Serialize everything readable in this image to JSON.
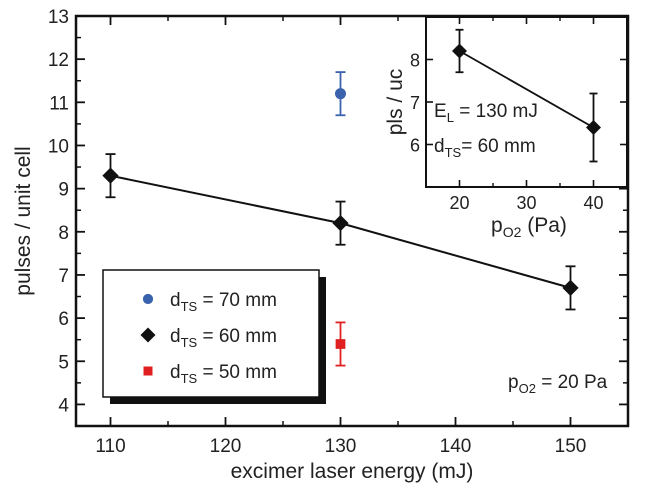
{
  "chart_data": [
    {
      "type": "scatter",
      "title": "",
      "xlabel": "excimer laser energy (mJ)",
      "ylabel": "pulses / unit cell",
      "xlim": [
        107,
        155
      ],
      "ylim": [
        3.5,
        13
      ],
      "xticks": [
        "110",
        "120",
        "130",
        "140",
        "150"
      ],
      "yticks": [
        "4",
        "5",
        "6",
        "7",
        "8",
        "9",
        "10",
        "11",
        "12",
        "13"
      ],
      "grid": false,
      "legend_placement": "bottom-left",
      "annotation": {
        "main": "p",
        "sub": "O2",
        "rest": " = 20 Pa"
      },
      "series": [
        {
          "name": {
            "main": "d",
            "sub": "TS",
            "rest": " = 70 mm"
          },
          "marker": "circle",
          "color": "#3a62ad",
          "line": false,
          "points": [
            {
              "x": 130,
              "y": 11.2,
              "err": 0.5
            }
          ]
        },
        {
          "name": {
            "main": "d",
            "sub": "TS",
            "rest": " = 60 mm"
          },
          "marker": "diamond",
          "color": "#111111",
          "line": true,
          "points": [
            {
              "x": 110,
              "y": 9.3,
              "err": 0.5
            },
            {
              "x": 130,
              "y": 8.2,
              "err": 0.5
            },
            {
              "x": 150,
              "y": 6.7,
              "err": 0.5
            }
          ]
        },
        {
          "name": {
            "main": "d",
            "sub": "TS",
            "rest": " = 50 mm"
          },
          "marker": "square",
          "color": "#e02020",
          "line": false,
          "points": [
            {
              "x": 130,
              "y": 5.4,
              "err": 0.5
            }
          ]
        }
      ]
    },
    {
      "type": "line",
      "title": "",
      "xlabel": {
        "main": "p",
        "sub": "O2",
        "rest": " (Pa)"
      },
      "ylabel": "pls / uc",
      "xlim": [
        15,
        45
      ],
      "ylim": [
        5,
        9
      ],
      "xticks": [
        "20",
        "30",
        "40"
      ],
      "yticks": [
        "6",
        "7",
        "8"
      ],
      "grid": false,
      "annotations": [
        {
          "main": "E",
          "sub": "L",
          "rest": " = 130 mJ"
        },
        {
          "main": "d",
          "sub": "TS",
          "rest": "= 60 mm"
        }
      ],
      "series": [
        {
          "marker": "diamond",
          "color": "#111111",
          "points": [
            {
              "x": 20,
              "y": 8.2,
              "err": 0.5
            },
            {
              "x": 40,
              "y": 6.4,
              "err": 0.8
            }
          ]
        }
      ]
    }
  ]
}
